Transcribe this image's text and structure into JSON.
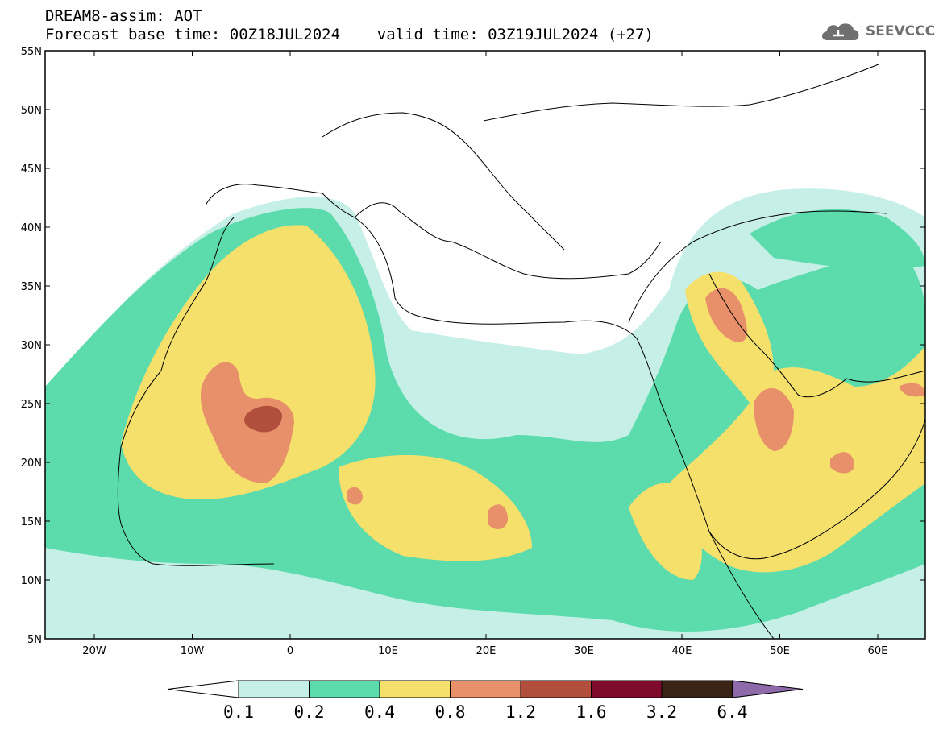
{
  "header": {
    "line1": "DREAM8-assim: AOT",
    "line2": "Forecast base time: 00Z18JUL2024    valid time: 03Z19JUL2024 (+27)"
  },
  "logo": {
    "text": "SEEVCCC",
    "icon": "cloud-icon"
  },
  "map": {
    "lat_labels": [
      "55N",
      "50N",
      "45N",
      "40N",
      "35N",
      "30N",
      "25N",
      "20N",
      "15N",
      "10N",
      "5N"
    ],
    "lon_labels": [
      "20W",
      "10W",
      "0",
      "10E",
      "20E",
      "30E",
      "40E",
      "50E",
      "60E"
    ]
  },
  "colorbar": {
    "labels": [
      "0.1",
      "0.2",
      "0.4",
      "0.8",
      "1.2",
      "1.6",
      "3.2",
      "6.4"
    ],
    "colors": [
      "#c6efe7",
      "#5cdcad",
      "#f5e06c",
      "#e8906a",
      "#b14e3c",
      "#7e0a2c",
      "#3b2415",
      "#8e6aab"
    ]
  },
  "colors": {
    "ocean": "#ffffff",
    "aot_0_1": "#c6efe7",
    "aot_0_2": "#5cdcad",
    "aot_0_4": "#f5e06c",
    "aot_0_8": "#e8906a",
    "aot_1_2": "#b14e3c"
  }
}
